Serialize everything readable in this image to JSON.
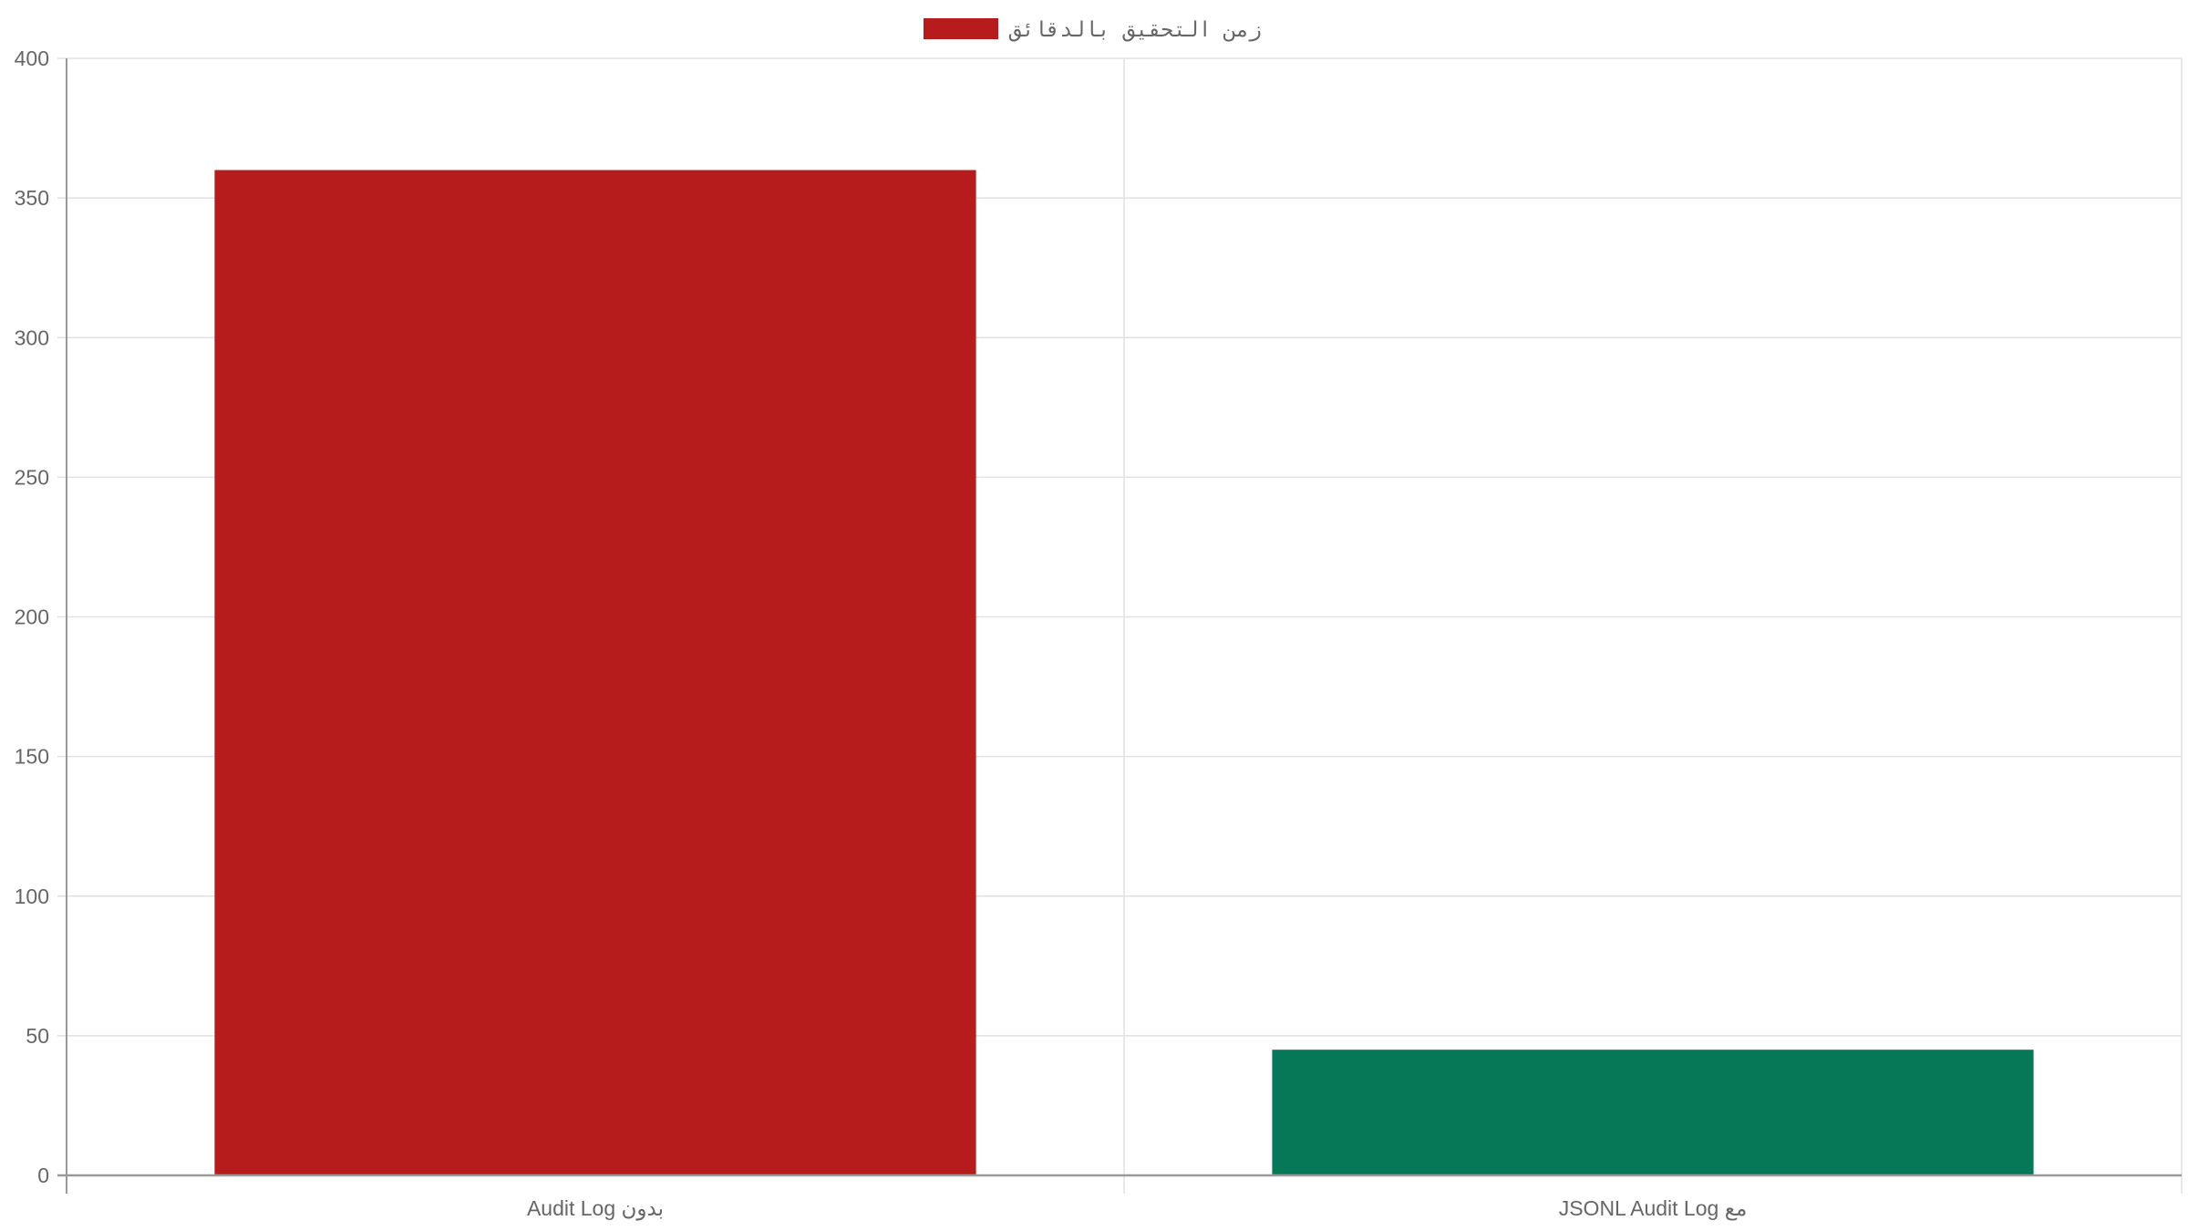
{
  "chart_data": {
    "type": "bar",
    "title": "",
    "xlabel": "",
    "ylabel": "",
    "categories": [
      "بدون Audit Log",
      "مع JSONL Audit Log"
    ],
    "series": [
      {
        "name": "زمن التحقيق بالدقائق",
        "values": [
          360,
          45
        ],
        "colors": [
          "#b71c1c",
          "#067857"
        ]
      }
    ],
    "ylim": [
      0,
      400
    ],
    "yticks": [
      0,
      50,
      100,
      150,
      200,
      250,
      300,
      350,
      400
    ],
    "grid": true,
    "legend_position": "top-center",
    "legend_color": "#b71c1c"
  }
}
